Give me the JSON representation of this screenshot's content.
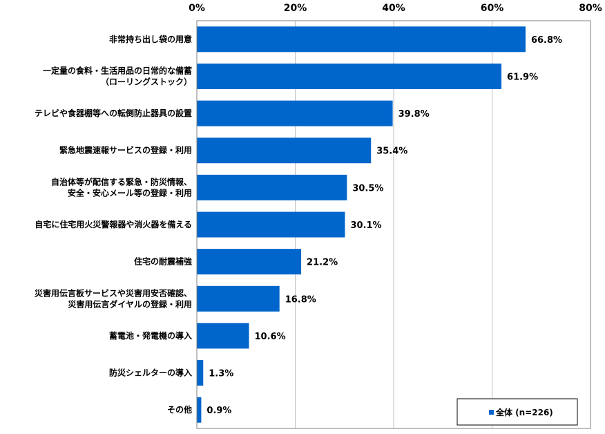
{
  "chart_data": {
    "type": "bar",
    "orientation": "horizontal",
    "categories": [
      [
        "非常持ち出し袋の用意"
      ],
      [
        "一定量の食料・生活用品の日常的な備蓄",
        "（ローリングストック）"
      ],
      [
        "テレビや食器棚等への転倒防止器具の設置"
      ],
      [
        "緊急地震速報サービスの登録・利用"
      ],
      [
        "自治体等が配信する緊急・防災情報、",
        "安全・安心メール等の登録・利用"
      ],
      [
        "自宅に住宅用火災警報器や消火器を備える"
      ],
      [
        "住宅の耐震補強"
      ],
      [
        "災害用伝言板サービスや災害用安否確認、",
        "災害用伝言ダイヤルの登録・利用"
      ],
      [
        "蓄電池・発電機の導入"
      ],
      [
        "防災シェルターの導入"
      ],
      [
        "その他"
      ]
    ],
    "series": [
      {
        "name": "全体",
        "values": [
          66.8,
          61.9,
          39.8,
          35.4,
          30.5,
          30.1,
          21.2,
          16.8,
          10.6,
          1.3,
          0.9
        ],
        "labels": [
          "66.8%",
          "61.9%",
          "39.8%",
          "35.4%",
          "30.5%",
          "30.1%",
          "21.2%",
          "16.8%",
          "10.6%",
          "1.3%",
          "0.9%"
        ],
        "color": "#0066CC"
      }
    ],
    "xlim": [
      0,
      80
    ],
    "xticks": [
      "0%",
      "20%",
      "40%",
      "60%",
      "80%"
    ],
    "grid": true,
    "legend": {
      "position": "bottom-right",
      "text": "全体 (n=226)"
    }
  }
}
